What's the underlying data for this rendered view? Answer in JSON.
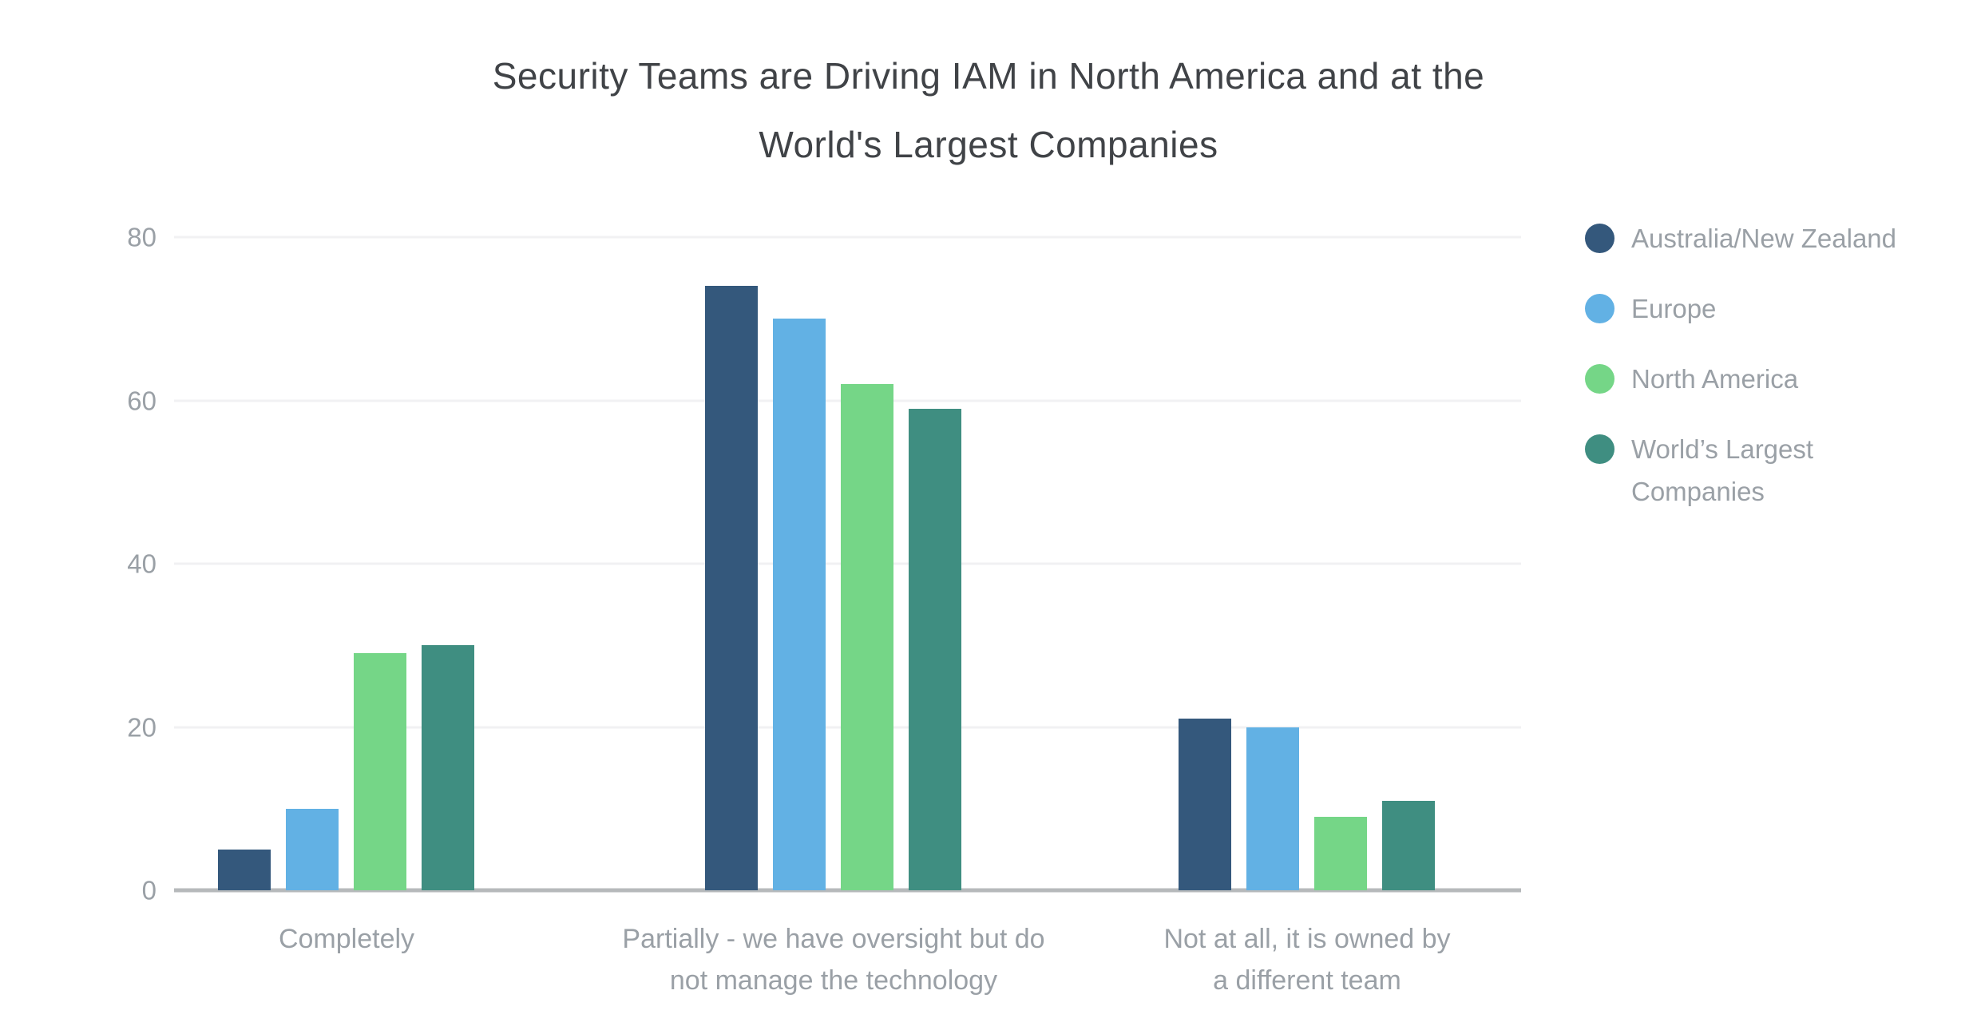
{
  "title": {
    "line1": "Security Teams are Driving IAM in North America and at the",
    "line2": "World's Largest Companies"
  },
  "chart_data": {
    "type": "bar",
    "title": "Security Teams are Driving IAM in North America and at the World's Largest Companies",
    "categories": [
      "Completely",
      "Partially - we have oversight but do not manage the technology",
      "Not at all, it is owned by a different team"
    ],
    "category_label_lines": [
      [
        "Completely"
      ],
      [
        "Partially - we have oversight but do",
        "not manage the technology"
      ],
      [
        "Not at all, it is owned by",
        "a different team"
      ]
    ],
    "series": [
      {
        "name": "Australia/New Zealand",
        "color": "#34587C",
        "values": [
          5,
          74,
          21
        ]
      },
      {
        "name": "Europe",
        "color": "#62B1E4",
        "values": [
          10,
          70,
          20
        ]
      },
      {
        "name": "North America",
        "color": "#75D687",
        "values": [
          29,
          62,
          9
        ]
      },
      {
        "name": "World’s Largest Companies",
        "color": "#3F8E81",
        "values": [
          30,
          59,
          11
        ]
      }
    ],
    "xlabel": "",
    "ylabel": "",
    "yticks": [
      0,
      20,
      40,
      60,
      80
    ],
    "ylim": [
      0,
      80
    ],
    "grid": true,
    "legend_position": "right",
    "colors": {
      "title_text": "#404347",
      "axis_text": "#9aa0a6",
      "axis_line": "#b6b9bb",
      "gridline": "#f1f1f3",
      "background": "#ffffff"
    }
  }
}
